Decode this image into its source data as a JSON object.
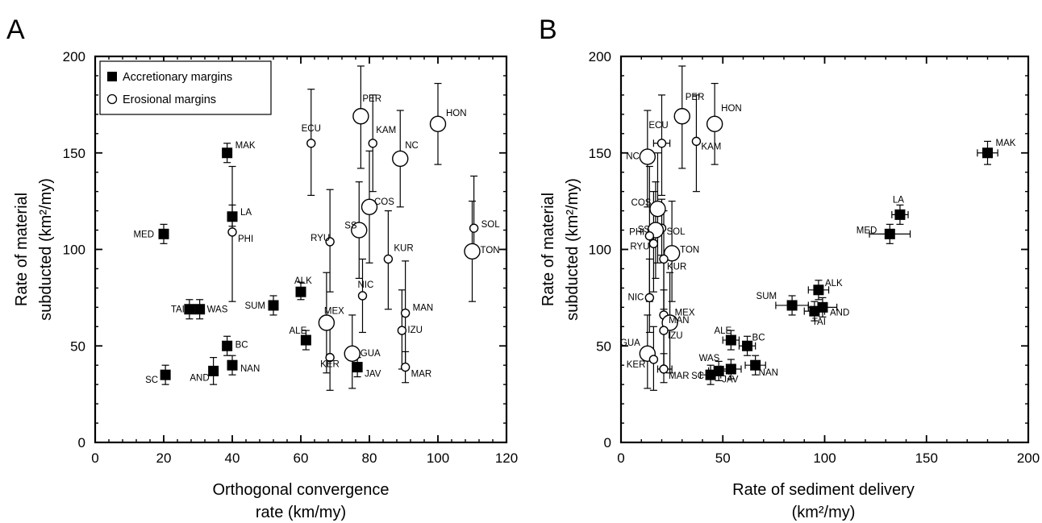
{
  "chart_data": [
    {
      "type": "scatter",
      "panel_label": "A",
      "xlabel_lines": [
        "Orthogonal convergence",
        "rate (km/my)"
      ],
      "ylabel_lines": [
        "Rate of material",
        "subducted (km²/my)"
      ],
      "xlim": [
        0,
        120
      ],
      "ylim": [
        0,
        200
      ],
      "xticks": [
        0,
        20,
        40,
        60,
        80,
        100,
        120
      ],
      "yticks": [
        0,
        50,
        100,
        150,
        200
      ],
      "legend": {
        "placement": "top-left",
        "entries": [
          {
            "marker": "filled-square",
            "label": "Accretionary margins"
          },
          {
            "marker": "open-circle",
            "label": "Erosional margins"
          }
        ]
      },
      "series": [
        {
          "name": "Accretionary margins",
          "marker": "square",
          "points": [
            {
              "label": "MAK",
              "x": 38.5,
              "y": 150,
              "yerr": [
                145,
                155
              ]
            },
            {
              "label": "LA",
              "x": 40,
              "y": 117,
              "yerr": [
                112,
                123
              ]
            },
            {
              "label": "MED",
              "x": 20,
              "y": 108,
              "yerr": [
                103,
                113
              ]
            },
            {
              "label": "ALK",
              "x": 60,
              "y": 78,
              "yerr": [
                74,
                83
              ]
            },
            {
              "label": "SUM",
              "x": 52,
              "y": 71,
              "yerr": [
                66,
                76
              ]
            },
            {
              "label": "TAI",
              "x": 27.5,
              "y": 69,
              "yerr": [
                64,
                74
              ]
            },
            {
              "label": "WAS",
              "x": 30.5,
              "y": 69,
              "yerr": [
                64,
                74
              ]
            },
            {
              "label": "ALE",
              "x": 61.5,
              "y": 53,
              "yerr": [
                48,
                58
              ]
            },
            {
              "label": "BC",
              "x": 38.5,
              "y": 50,
              "yerr": [
                45,
                55
              ]
            },
            {
              "label": "NAN",
              "x": 40,
              "y": 40,
              "yerr": [
                35,
                45
              ]
            },
            {
              "label": "AND",
              "x": 34.5,
              "y": 37,
              "yerr": [
                30,
                44
              ]
            },
            {
              "label": "SC",
              "x": 20.5,
              "y": 35,
              "yerr": [
                30,
                40
              ]
            },
            {
              "label": "JAV",
              "x": 76.5,
              "y": 39,
              "yerr": [
                34,
                44
              ]
            }
          ]
        },
        {
          "name": "Erosional margins",
          "marker": "circle",
          "points": [
            {
              "label": "PER",
              "x": 77.5,
              "y": 169,
              "size": "large",
              "yerr": [
                142,
                195
              ]
            },
            {
              "label": "HON",
              "x": 100,
              "y": 165,
              "size": "large",
              "yerr": [
                144,
                186
              ]
            },
            {
              "label": "ECU",
              "x": 63,
              "y": 155,
              "size": "small",
              "yerr": [
                128,
                183
              ]
            },
            {
              "label": "KAM",
              "x": 81,
              "y": 155,
              "size": "small",
              "yerr": [
                130,
                180
              ]
            },
            {
              "label": "NC",
              "x": 89,
              "y": 147,
              "size": "large",
              "yerr": [
                122,
                172
              ]
            },
            {
              "label": "COS",
              "x": 80,
              "y": 122,
              "size": "large",
              "yerr": [
                93,
                151
              ]
            },
            {
              "label": "SOL",
              "x": 110.5,
              "y": 111,
              "size": "small",
              "yerr": [
                97,
                138
              ]
            },
            {
              "label": "SS",
              "x": 77,
              "y": 110,
              "size": "large",
              "yerr": [
                85,
                135
              ]
            },
            {
              "label": "PHI",
              "x": 40,
              "y": 109,
              "size": "small",
              "yerr": [
                73,
                143
              ]
            },
            {
              "label": "RYU",
              "x": 68.5,
              "y": 104,
              "size": "small",
              "yerr": [
                78,
                131
              ]
            },
            {
              "label": "TON",
              "x": 110,
              "y": 99,
              "size": "large",
              "yerr": [
                73,
                125
              ]
            },
            {
              "label": "KUR",
              "x": 85.5,
              "y": 95,
              "size": "small",
              "yerr": [
                69,
                120
              ]
            },
            {
              "label": "NIC",
              "x": 78,
              "y": 76,
              "size": "small",
              "yerr": [
                57,
                95
              ]
            },
            {
              "label": "MAN",
              "x": 90.5,
              "y": 67,
              "size": "small",
              "yerr": [
                39,
                94
              ]
            },
            {
              "label": "MEX",
              "x": 67.5,
              "y": 62,
              "size": "large",
              "yerr": [
                36,
                88
              ]
            },
            {
              "label": "IZU",
              "x": 89.5,
              "y": 58,
              "size": "small",
              "yerr": [
                38,
                79
              ]
            },
            {
              "label": "GUA",
              "x": 75,
              "y": 46,
              "size": "large",
              "yerr": [
                28,
                66
              ]
            },
            {
              "label": "KER",
              "x": 68.5,
              "y": 44,
              "size": "small",
              "yerr": [
                27,
                60
              ]
            },
            {
              "label": "MAR",
              "x": 90.5,
              "y": 39,
              "size": "small",
              "yerr": [
                31,
                47
              ]
            }
          ]
        }
      ]
    },
    {
      "type": "scatter",
      "panel_label": "B",
      "xlabel_lines": [
        "Rate of sediment delivery",
        "(km²/my)"
      ],
      "ylabel_lines": [
        "Rate of material",
        "subducted (km²/my)"
      ],
      "xlim": [
        0,
        200
      ],
      "ylim": [
        0,
        200
      ],
      "xticks": [
        0,
        50,
        100,
        150,
        200
      ],
      "yticks": [
        0,
        50,
        100,
        150,
        200
      ],
      "series": [
        {
          "name": "Accretionary margins",
          "marker": "square",
          "points": [
            {
              "label": "MAK",
              "x": 180,
              "y": 150,
              "yerr": [
                144,
                156
              ],
              "xerr": [
                175,
                185
              ]
            },
            {
              "label": "LA",
              "x": 137,
              "y": 118,
              "yerr": [
                113,
                123
              ],
              "xerr": [
                133,
                141
              ]
            },
            {
              "label": "MED",
              "x": 132,
              "y": 108,
              "yerr": [
                103,
                113
              ],
              "xerr": [
                122,
                142
              ]
            },
            {
              "label": "ALK",
              "x": 97,
              "y": 79,
              "yerr": [
                74,
                84
              ],
              "xerr": [
                92,
                102
              ]
            },
            {
              "label": "SUM",
              "x": 84,
              "y": 71,
              "yerr": [
                66,
                76
              ],
              "xerr": [
                76,
                92
              ]
            },
            {
              "label": "TAI",
              "x": 95,
              "y": 68,
              "yerr": [
                63,
                73
              ],
              "xerr": [
                90,
                100
              ]
            },
            {
              "label": "AND",
              "x": 99,
              "y": 70,
              "yerr": [
                65,
                75
              ],
              "xerr": [
                92,
                106
              ]
            },
            {
              "label": "ALE",
              "x": 54,
              "y": 53,
              "yerr": [
                48,
                58
              ],
              "xerr": [
                50,
                58
              ]
            },
            {
              "label": "BC",
              "x": 62,
              "y": 50,
              "yerr": [
                45,
                55
              ],
              "xerr": [
                58,
                66
              ]
            },
            {
              "label": "NAN",
              "x": 66,
              "y": 40,
              "yerr": [
                35,
                45
              ],
              "xerr": [
                61,
                71
              ]
            },
            {
              "label": "WAS",
              "x": 54,
              "y": 38,
              "yerr": [
                33,
                43
              ],
              "xerr": [
                49,
                59
              ]
            },
            {
              "label": "SC",
              "x": 44,
              "y": 35,
              "yerr": [
                30,
                40
              ],
              "xerr": [
                39,
                49
              ]
            },
            {
              "label": "JAV",
              "x": 48,
              "y": 37,
              "yerr": [
                32,
                42
              ],
              "xerr": [
                43,
                53
              ]
            }
          ]
        },
        {
          "name": "Erosional margins",
          "marker": "circle",
          "points": [
            {
              "label": "PER",
              "x": 30,
              "y": 169,
              "size": "large",
              "yerr": [
                142,
                195
              ]
            },
            {
              "label": "HON",
              "x": 46,
              "y": 165,
              "size": "large",
              "yerr": [
                144,
                186
              ]
            },
            {
              "label": "ECU",
              "x": 20,
              "y": 155,
              "size": "small",
              "yerr": [
                128,
                180
              ],
              "xerr": [
                16,
                24
              ]
            },
            {
              "label": "KAM",
              "x": 37,
              "y": 156,
              "size": "small",
              "yerr": [
                130,
                180
              ]
            },
            {
              "label": "NC",
              "x": 13,
              "y": 148,
              "size": "large",
              "yerr": [
                122,
                172
              ]
            },
            {
              "label": "COS",
              "x": 18,
              "y": 121,
              "size": "large",
              "yerr": [
                93,
                150
              ]
            },
            {
              "label": "SOL",
              "x": 20,
              "y": 111,
              "size": "small",
              "yerr": [
                97,
                126
              ]
            },
            {
              "label": "SS",
              "x": 17,
              "y": 110,
              "size": "large",
              "yerr": [
                85,
                135
              ]
            },
            {
              "label": "PHI",
              "x": 14,
              "y": 107,
              "size": "small",
              "yerr": [
                73,
                143
              ]
            },
            {
              "label": "RYU",
              "x": 16,
              "y": 103,
              "size": "small",
              "yerr": [
                78,
                130
              ]
            },
            {
              "label": "TON",
              "x": 25,
              "y": 98,
              "size": "large",
              "yerr": [
                73,
                125
              ]
            },
            {
              "label": "KUR",
              "x": 21,
              "y": 95,
              "size": "small",
              "yerr": [
                69,
                120
              ]
            },
            {
              "label": "NIC",
              "x": 14,
              "y": 75,
              "size": "small",
              "yerr": [
                57,
                95
              ]
            },
            {
              "label": "MAN",
              "x": 21,
              "y": 66,
              "size": "small",
              "yerr": [
                39,
                94
              ]
            },
            {
              "label": "MEX",
              "x": 24,
              "y": 62,
              "size": "large",
              "yerr": [
                36,
                88
              ]
            },
            {
              "label": "IZU",
              "x": 21,
              "y": 58,
              "size": "small",
              "yerr": [
                38,
                79
              ]
            },
            {
              "label": "GUA",
              "x": 13,
              "y": 46,
              "size": "large",
              "yerr": [
                28,
                66
              ]
            },
            {
              "label": "KER",
              "x": 16,
              "y": 43,
              "size": "small",
              "yerr": [
                27,
                60
              ]
            },
            {
              "label": "MAR",
              "x": 21,
              "y": 38,
              "size": "small",
              "yerr": [
                31,
                46
              ],
              "xerr": [
                18,
                25
              ]
            }
          ]
        }
      ]
    }
  ]
}
